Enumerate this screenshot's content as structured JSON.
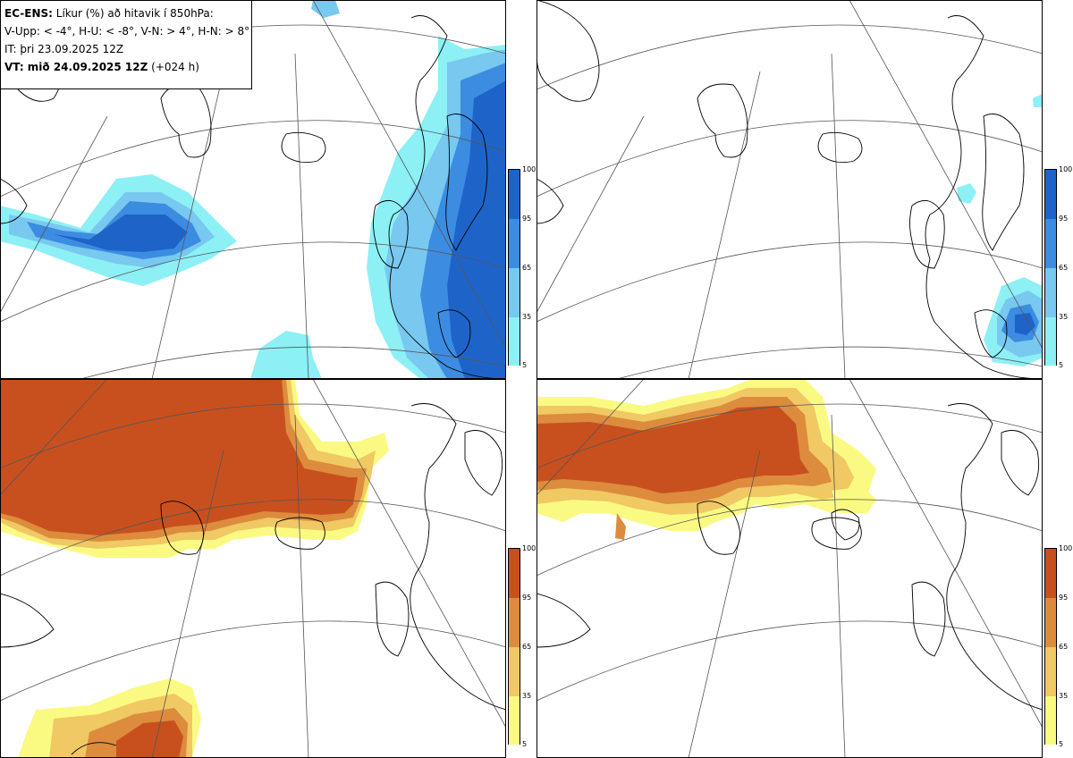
{
  "header": {
    "product": "EC-ENS:",
    "title": "Líkur (%) að hitavik í 850hPa:",
    "thresholds": "V-Upp: < -4°, H-U: < -8°, V-N: > 4°, H-N: > 8°",
    "initial_time": "IT: þri 23.09.2025 12Z",
    "valid_label": "VT: mið 24.09.2025 12Z",
    "lead": "(+024 h)"
  },
  "legends": {
    "ticks": [
      "100",
      "95",
      "65",
      "35",
      "5"
    ],
    "cold_colors": [
      "#1e64c8",
      "#3c8ce1",
      "#78c8f0",
      "#8cf0f5"
    ],
    "warm_colors": [
      "#c8501e",
      "#dc8c3c",
      "#f0c864",
      "#fafa82"
    ]
  },
  "panels": [
    {
      "id": "V-Upp",
      "field": "probability of T850 anomaly < -4°"
    },
    {
      "id": "H-U",
      "field": "probability of T850 anomaly < -8°"
    },
    {
      "id": "V-N",
      "field": "probability of T850 anomaly > 4°"
    },
    {
      "id": "H-N",
      "field": "probability of T850 anomaly > 8°"
    }
  ]
}
